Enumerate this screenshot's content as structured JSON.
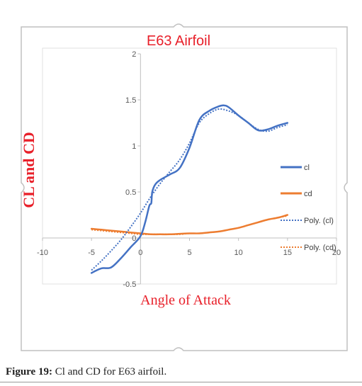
{
  "chart_data": {
    "type": "line",
    "title": "E63 Airfoil",
    "xlabel": "Angle of Attack",
    "ylabel": "CL and CD",
    "xlim": [
      -10,
      20
    ],
    "ylim": [
      -0.5,
      2
    ],
    "x_ticks": [
      "-10",
      "-5",
      "0",
      "5",
      "10",
      "15",
      "20"
    ],
    "y_ticks": [
      "-0.5",
      "0",
      "0.5",
      "1",
      "1.5",
      "2"
    ],
    "grid": false,
    "legend_position": "right",
    "series": [
      {
        "name": "cl",
        "style": "solid",
        "color": "#4472c4",
        "x": [
          -5,
          -4,
          -3,
          -2,
          -1,
          0,
          0.5,
          0.9,
          1.1,
          1.2,
          1.5,
          2,
          3,
          4,
          5,
          6,
          7,
          8,
          8.5,
          9,
          10,
          11,
          12,
          13,
          14,
          15
        ],
        "y": [
          -0.38,
          -0.33,
          -0.32,
          -0.22,
          -0.1,
          0.02,
          0.18,
          0.35,
          0.38,
          0.5,
          0.58,
          0.63,
          0.69,
          0.76,
          0.98,
          1.28,
          1.38,
          1.43,
          1.44,
          1.42,
          1.33,
          1.25,
          1.17,
          1.18,
          1.22,
          1.25
        ]
      },
      {
        "name": "cd",
        "style": "solid",
        "color": "#ed7d31",
        "x": [
          -5,
          -4,
          -3,
          -2,
          -1,
          0,
          1,
          2,
          3,
          4,
          5,
          6,
          7,
          8,
          9,
          10,
          11,
          12,
          13,
          14,
          15
        ],
        "y": [
          0.1,
          0.09,
          0.08,
          0.07,
          0.06,
          0.05,
          0.04,
          0.04,
          0.04,
          0.045,
          0.05,
          0.05,
          0.06,
          0.07,
          0.09,
          0.11,
          0.14,
          0.17,
          0.2,
          0.22,
          0.25
        ]
      },
      {
        "name": "Poly. (cl)",
        "style": "dotted",
        "color": "#4472c4",
        "x": [
          -5,
          -4,
          -3,
          -2,
          -1,
          0,
          1,
          2,
          3,
          4,
          5,
          6,
          7,
          8,
          9,
          10,
          11,
          12,
          13,
          14,
          15
        ],
        "y": [
          -0.35,
          -0.25,
          -0.14,
          -0.02,
          0.12,
          0.27,
          0.44,
          0.59,
          0.72,
          0.85,
          1.03,
          1.25,
          1.35,
          1.4,
          1.38,
          1.33,
          1.25,
          1.18,
          1.16,
          1.2,
          1.23
        ]
      },
      {
        "name": "Poly. (cd)",
        "style": "dotted",
        "color": "#ed7d31",
        "x": [
          -5,
          -4,
          -3,
          -2,
          -1,
          0,
          1,
          2,
          3,
          4,
          5,
          6,
          7,
          8,
          9,
          10,
          11,
          12,
          13,
          14,
          15
        ],
        "y": [
          0.09,
          0.08,
          0.07,
          0.06,
          0.05,
          0.04,
          0.04,
          0.04,
          0.04,
          0.04,
          0.05,
          0.05,
          0.06,
          0.07,
          0.09,
          0.11,
          0.14,
          0.17,
          0.2,
          0.22,
          0.24
        ]
      }
    ]
  },
  "caption": {
    "label": "Figure 19:",
    "text": "Cl and CD for E63 airfoil."
  }
}
